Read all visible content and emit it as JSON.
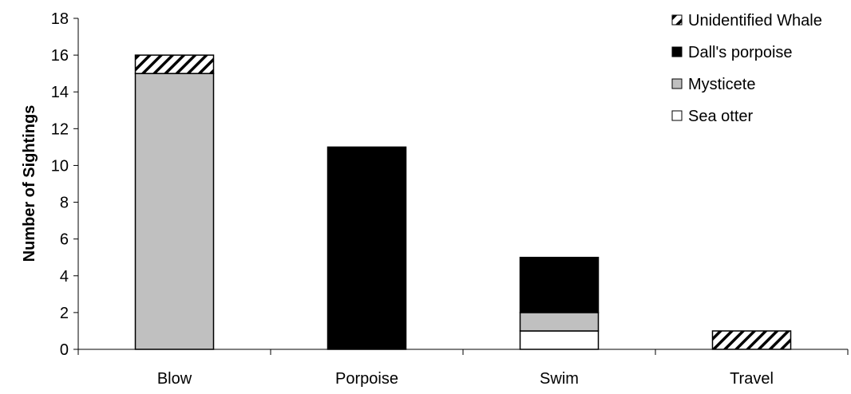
{
  "chart_data": {
    "type": "bar",
    "stacked": true,
    "title": "",
    "xlabel": "",
    "ylabel": "Number of Sightings",
    "ylim": [
      0,
      18
    ],
    "yticks": [
      0,
      2,
      4,
      6,
      8,
      10,
      12,
      14,
      16,
      18
    ],
    "categories": [
      "Blow",
      "Porpoise",
      "Swim",
      "Travel"
    ],
    "grid": false,
    "legend_position": "top-right",
    "series": [
      {
        "name": "Sea otter",
        "values": [
          0,
          0,
          1,
          0
        ],
        "color": "#ffffff",
        "pattern": "solid"
      },
      {
        "name": "Mysticete",
        "values": [
          15,
          0,
          1,
          0
        ],
        "color": "#c0c0c0",
        "pattern": "solid"
      },
      {
        "name": "Dall's porpoise",
        "values": [
          0,
          11,
          3,
          0
        ],
        "color": "#000000",
        "pattern": "solid"
      },
      {
        "name": "Unidentified Whale",
        "values": [
          1,
          0,
          0,
          1
        ],
        "color": "#000000",
        "pattern": "diagonal-hatch"
      }
    ],
    "legend_order": [
      "Unidentified Whale",
      "Dall's porpoise",
      "Mysticete",
      "Sea otter"
    ]
  }
}
